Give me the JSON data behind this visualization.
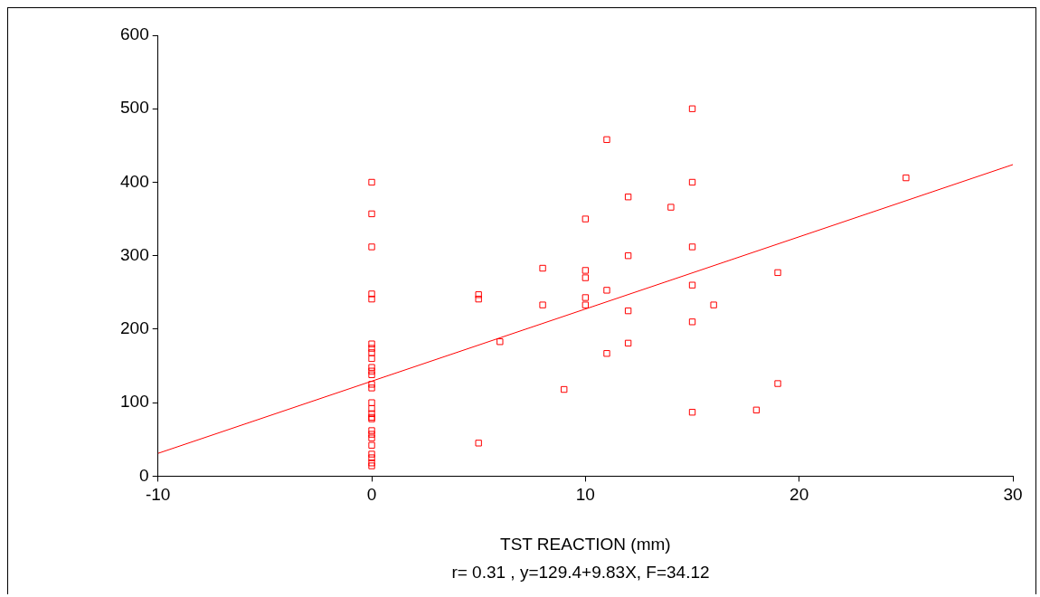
{
  "chart_data": {
    "type": "scatter",
    "xlabel": "TST REACTION (mm)",
    "annotations": [
      "r= 0.31 , y=129.4+9.83X, F=34.12"
    ],
    "xlim": [
      -10,
      30
    ],
    "xticks": [
      -10,
      0,
      10,
      20,
      30
    ],
    "ylim": [
      0,
      600
    ],
    "yticks": [
      0,
      100,
      200,
      300,
      400,
      500,
      600
    ],
    "grid": false,
    "legend": false,
    "marker": "square",
    "series": [
      {
        "color": "#ff0000",
        "x": [
          0,
          0,
          0,
          0,
          0,
          0,
          0,
          0,
          0,
          0,
          0,
          0,
          0,
          0,
          0,
          0,
          0,
          0,
          0,
          0,
          0,
          0,
          0,
          0,
          0,
          0,
          0,
          5,
          5,
          5,
          6,
          8,
          8,
          9,
          10,
          10,
          10,
          10,
          10,
          11,
          11,
          11,
          12,
          12,
          12,
          12,
          14,
          15,
          15,
          15,
          15,
          15,
          15,
          16,
          18,
          19,
          19,
          25
        ],
        "values": [
          400,
          357,
          312,
          248,
          241,
          180,
          174,
          168,
          160,
          148,
          143,
          138,
          125,
          120,
          100,
          92,
          85,
          80,
          78,
          62,
          57,
          52,
          42,
          30,
          25,
          18,
          14,
          247,
          241,
          45,
          183,
          283,
          233,
          118,
          350,
          280,
          270,
          243,
          233,
          458,
          253,
          167,
          380,
          300,
          225,
          181,
          366,
          500,
          400,
          312,
          260,
          210,
          87,
          233,
          90,
          277,
          126,
          406
        ]
      },
      {
        "type": "line",
        "color": "#ff0000",
        "marker": "none",
        "x": [
          -10,
          30
        ],
        "values": [
          31,
          424
        ]
      }
    ]
  }
}
